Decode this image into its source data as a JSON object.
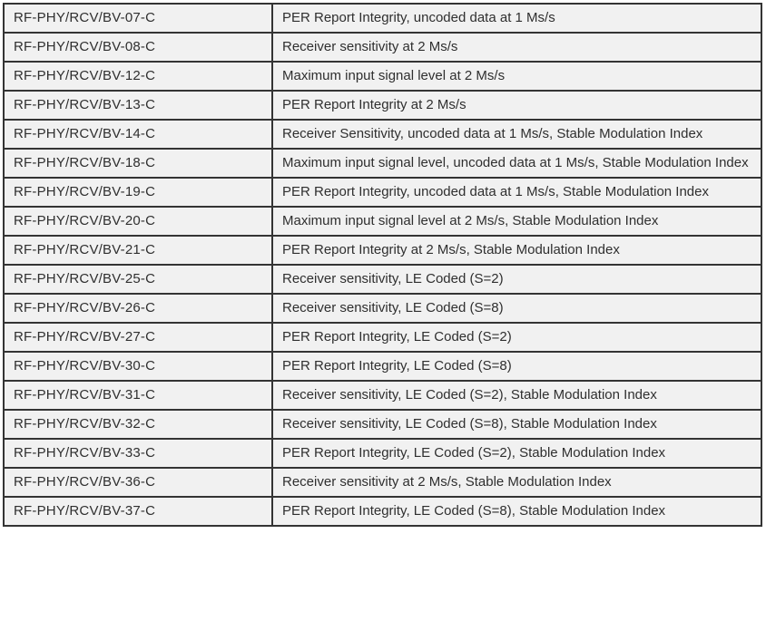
{
  "document": {
    "type": "test-case-table",
    "columns": [
      {
        "key": "id",
        "semantic": "test-case-identifier"
      },
      {
        "key": "description",
        "semantic": "test-case-description"
      }
    ]
  },
  "colors": {
    "cell_background": "#f1f1f1",
    "border": "#343434",
    "text": "#2f2f2f",
    "page_background": "#ffffff"
  },
  "table": {
    "rows": [
      {
        "id": "RF-PHY/RCV/BV-07-C",
        "description": "PER Report Integrity, uncoded data at 1 Ms/s"
      },
      {
        "id": "RF-PHY/RCV/BV-08-C",
        "description": "Receiver sensitivity at 2 Ms/s"
      },
      {
        "id": "RF-PHY/RCV/BV-12-C",
        "description": "Maximum input signal level at 2 Ms/s"
      },
      {
        "id": "RF-PHY/RCV/BV-13-C",
        "description": "PER Report Integrity at 2 Ms/s"
      },
      {
        "id": "RF-PHY/RCV/BV-14-C",
        "description": "Receiver Sensitivity, uncoded data at 1 Ms/s, Stable Modulation Index"
      },
      {
        "id": "RF-PHY/RCV/BV-18-C",
        "description": "Maximum input signal level, uncoded data at 1 Ms/s, Stable Modulation Index"
      },
      {
        "id": "RF-PHY/RCV/BV-19-C",
        "description": "PER Report Integrity, uncoded data at 1 Ms/s, Stable Modulation Index"
      },
      {
        "id": "RF-PHY/RCV/BV-20-C",
        "description": "Maximum input signal level at 2 Ms/s, Stable Modulation Index"
      },
      {
        "id": "RF-PHY/RCV/BV-21-C",
        "description": "PER Report Integrity at 2 Ms/s, Stable Modulation Index"
      },
      {
        "id": "RF-PHY/RCV/BV-25-C",
        "description": "Receiver sensitivity, LE Coded (S=2)"
      },
      {
        "id": "RF-PHY/RCV/BV-26-C",
        "description": "Receiver sensitivity, LE Coded (S=8)"
      },
      {
        "id": "RF-PHY/RCV/BV-27-C",
        "description": "PER Report Integrity, LE Coded (S=2)"
      },
      {
        "id": "RF-PHY/RCV/BV-30-C",
        "description": "PER Report Integrity, LE Coded (S=8)"
      },
      {
        "id": "RF-PHY/RCV/BV-31-C",
        "description": "Receiver sensitivity, LE Coded (S=2), Stable Modulation Index"
      },
      {
        "id": "RF-PHY/RCV/BV-32-C",
        "description": "Receiver sensitivity, LE Coded (S=8), Stable Modulation Index"
      },
      {
        "id": "RF-PHY/RCV/BV-33-C",
        "description": "PER Report Integrity, LE Coded (S=2), Stable Modulation Index"
      },
      {
        "id": "RF-PHY/RCV/BV-36-C",
        "description": "Receiver sensitivity at 2 Ms/s, Stable Modulation Index"
      },
      {
        "id": "RF-PHY/RCV/BV-37-C",
        "description": "PER Report Integrity, LE Coded (S=8), Stable Modulation Index"
      }
    ]
  }
}
